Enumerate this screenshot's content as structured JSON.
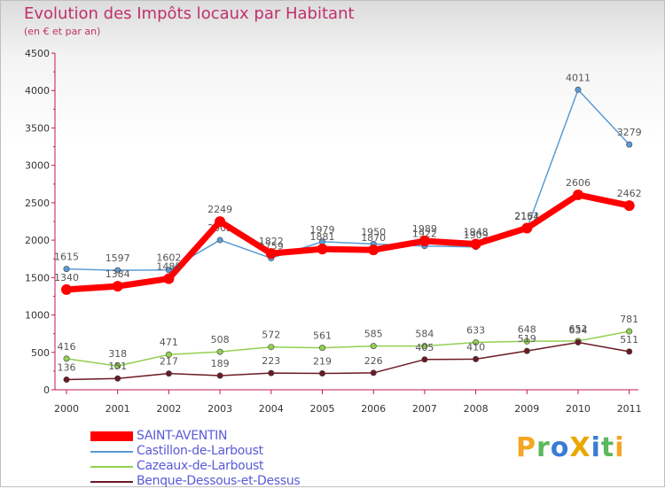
{
  "chart_data": {
    "type": "line",
    "title": "Evolution des Impôts locaux par Habitant",
    "subtitle": "(en € et par an)",
    "xlabel": "",
    "ylabel": "",
    "x": [
      "2000",
      "2001",
      "2002",
      "2003",
      "2004",
      "2005",
      "2006",
      "2007",
      "2008",
      "2009",
      "2010",
      "2011"
    ],
    "ylim": [
      0,
      4500
    ],
    "yticks": [
      "0",
      "500",
      "1000",
      "1500",
      "2000",
      "2500",
      "3000",
      "3500",
      "4000",
      "4500"
    ],
    "grid": false,
    "legend_position": "bottom-left",
    "series": [
      {
        "name": "Castillon-de-Larboust",
        "color": "#5b9bd5",
        "values": [
          1615,
          1597,
          1602,
          2002,
          1759,
          1979,
          1950,
          1922,
          1909,
          2154,
          4011,
          3279
        ],
        "labels": [
          "1615",
          "1597",
          "1602",
          "2002",
          "1759",
          "1979",
          "1950",
          "1922",
          "1909",
          "2154",
          "4011",
          "3279"
        ]
      },
      {
        "name": "Cazeaux-de-Larboust",
        "color": "#92d050",
        "values": [
          416,
          318,
          471,
          508,
          572,
          561,
          585,
          584,
          633,
          648,
          652,
          781
        ],
        "labels": [
          "416",
          "318",
          "471",
          "508",
          "572",
          "561",
          "585",
          "584",
          "633",
          "648",
          "652",
          "781"
        ]
      },
      {
        "name": "Benque-Dessous-et-Dessus",
        "color": "#6b1a24",
        "values": [
          136,
          151,
          217,
          189,
          223,
          219,
          226,
          405,
          410,
          519,
          634,
          511
        ],
        "labels": [
          "136",
          "151",
          "217",
          "189",
          "223",
          "219",
          "226",
          "405",
          "410",
          "519",
          "634",
          "511"
        ]
      },
      {
        "name": "SAINT-AVENTIN",
        "color": "#ff0000",
        "values": [
          1340,
          1384,
          1485,
          2249,
          1822,
          1881,
          1870,
          1989,
          1948,
          2161,
          2606,
          2462
        ],
        "labels": [
          "1340",
          "1384",
          "1485",
          "2249",
          "1822",
          "1881",
          "1870",
          "1989",
          "1948",
          "2161",
          "2606",
          "2462"
        ]
      }
    ],
    "legend": [
      {
        "name": "SAINT-AVENTIN",
        "color": "#ff0000"
      },
      {
        "name": "Castillon-de-Larboust",
        "color": "#5b9bd5"
      },
      {
        "name": "Cazeaux-de-Larboust",
        "color": "#92d050"
      },
      {
        "name": "Benque-Dessous-et-Dessus",
        "color": "#6b1a24"
      }
    ]
  },
  "logo": {
    "text": "ProXiti",
    "letters": [
      "P",
      "r",
      "o",
      "X",
      "i",
      "t",
      "i"
    ],
    "colors": [
      "#f5a623",
      "#5cb85c",
      "#3a7bd5",
      "#e8a800",
      "#3a7bd5",
      "#5cb85c",
      "#f5a623"
    ]
  }
}
